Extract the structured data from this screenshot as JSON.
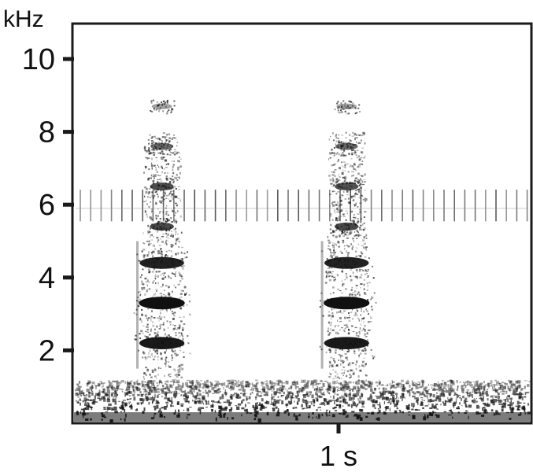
{
  "chart_data": {
    "type": "heatmap",
    "subtype": "spectrogram",
    "title": "",
    "xlabel": "",
    "ylabel": "kHz",
    "y_unit_label": "kHz",
    "ylim": [
      0,
      11
    ],
    "y_ticks": [
      2,
      4,
      6,
      8,
      10
    ],
    "x_tick_label": "1 s",
    "x_tick_value_s": 1,
    "grid": false,
    "colors": {
      "background": "#ffffff",
      "energy": "#111111",
      "frame": "#1a1a1a"
    },
    "noise_band_khz": [
      0,
      1.2
    ],
    "periodic_noise": {
      "center_khz": 5.9,
      "low_khz": 5.5,
      "high_khz": 6.5
    },
    "calls": [
      {
        "name": "call-1",
        "time_s": [
          0.5,
          0.62
        ],
        "bands_khz": [
          {
            "center": 2.2,
            "strength": 0.95
          },
          {
            "center": 3.3,
            "strength": 1.0
          },
          {
            "center": 4.4,
            "strength": 0.9
          },
          {
            "center": 5.4,
            "strength": 0.7
          },
          {
            "center": 6.5,
            "strength": 0.65
          },
          {
            "center": 7.6,
            "strength": 0.5
          },
          {
            "center": 8.7,
            "strength": 0.2
          }
        ]
      },
      {
        "name": "call-2",
        "time_s": [
          0.96,
          1.08
        ],
        "bands_khz": [
          {
            "center": 2.2,
            "strength": 0.95
          },
          {
            "center": 3.3,
            "strength": 1.0
          },
          {
            "center": 4.4,
            "strength": 0.9
          },
          {
            "center": 5.4,
            "strength": 0.7
          },
          {
            "center": 6.5,
            "strength": 0.65
          },
          {
            "center": 7.6,
            "strength": 0.5
          },
          {
            "center": 8.7,
            "strength": 0.2
          }
        ]
      }
    ]
  }
}
